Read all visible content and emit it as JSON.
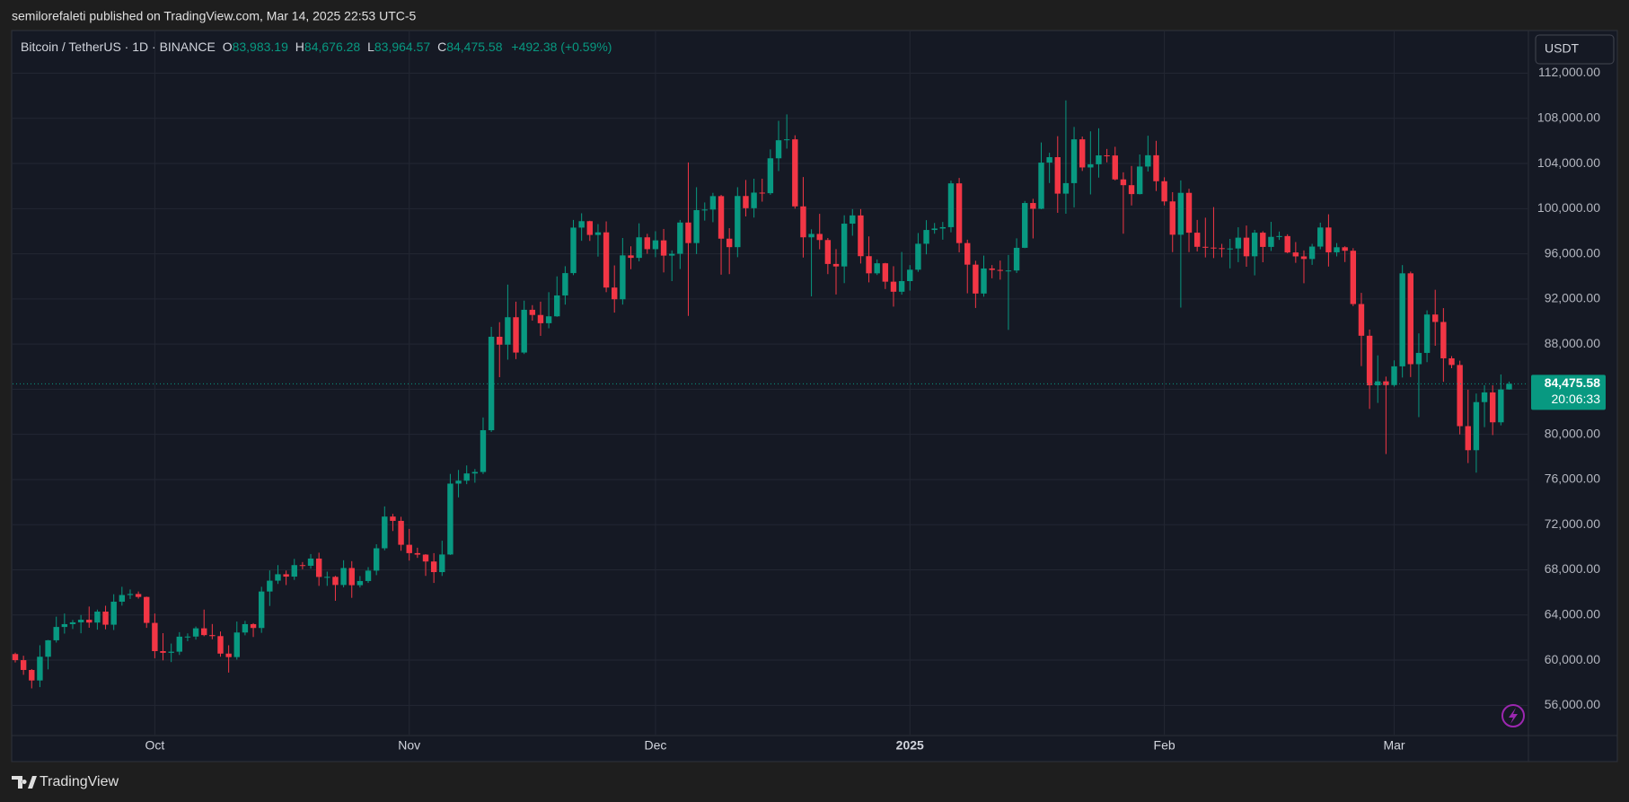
{
  "header": {
    "published": "semilorefaleti published on TradingView.com, Mar 14, 2025 22:53 UTC-5"
  },
  "footer": {
    "brand": "TradingView"
  },
  "chart_data": {
    "type": "candlestick",
    "title": "Bitcoin / TetherUS · 1D · BINANCE",
    "legend_keys": [
      "O",
      "H",
      "L",
      "C"
    ],
    "last_labels": {
      "open": "83,983.19",
      "high": "84,676.28",
      "low": "83,964.57",
      "close": "84,475.58",
      "change": "+492.38 (+0.59%)",
      "countdown": "20:06:33"
    },
    "currency": "USDT",
    "up_color": "#089981",
    "down_color": "#f23645",
    "grid": true,
    "ylim": [
      53400,
      115700
    ],
    "yticks": [
      {
        "value": 56000,
        "label": "56,000.00"
      },
      {
        "value": 60000,
        "label": "60,000.00"
      },
      {
        "value": 64000,
        "label": "64,000.00"
      },
      {
        "value": 68000,
        "label": "68,000.00"
      },
      {
        "value": 72000,
        "label": "72,000.00"
      },
      {
        "value": 76000,
        "label": "76,000.00"
      },
      {
        "value": 80000,
        "label": "80,000.00"
      },
      {
        "value": 84000,
        "label": "84,000.00"
      },
      {
        "value": 88000,
        "label": "88,000.00"
      },
      {
        "value": 92000,
        "label": "92,000.00"
      },
      {
        "value": 96000,
        "label": "96,000.00"
      },
      {
        "value": 100000,
        "label": "100,000.00"
      },
      {
        "value": 104000,
        "label": "104,000.00"
      },
      {
        "value": 108000,
        "label": "108,000.00"
      },
      {
        "value": 112000,
        "label": "112,000.00"
      }
    ],
    "categories": [
      null,
      null,
      null,
      null,
      null,
      null,
      null,
      null,
      null,
      null,
      null,
      null,
      null,
      null,
      null,
      null,
      null,
      "Oct",
      null,
      null,
      null,
      null,
      null,
      null,
      null,
      null,
      null,
      null,
      null,
      null,
      null,
      null,
      null,
      null,
      null,
      null,
      null,
      null,
      null,
      null,
      null,
      null,
      null,
      null,
      null,
      null,
      null,
      null,
      "Nov",
      null,
      null,
      null,
      null,
      null,
      null,
      null,
      null,
      null,
      null,
      null,
      null,
      null,
      null,
      null,
      null,
      null,
      null,
      null,
      null,
      null,
      null,
      null,
      null,
      null,
      null,
      null,
      null,
      null,
      "Dec",
      null,
      null,
      null,
      null,
      null,
      null,
      null,
      null,
      null,
      null,
      null,
      null,
      null,
      null,
      null,
      null,
      null,
      null,
      null,
      null,
      null,
      null,
      null,
      null,
      null,
      null,
      null,
      null,
      null,
      null,
      "2025",
      null,
      null,
      null,
      null,
      null,
      null,
      null,
      null,
      null,
      null,
      null,
      null,
      null,
      null,
      null,
      null,
      null,
      null,
      null,
      null,
      null,
      null,
      null,
      null,
      null,
      null,
      null,
      null,
      null,
      null,
      "Feb",
      null,
      null,
      null,
      null,
      null,
      null,
      null,
      null,
      null,
      null,
      null,
      null,
      null,
      null,
      null,
      null,
      null,
      null,
      null,
      null,
      null,
      null,
      null,
      null,
      null,
      null,
      null,
      "Mar",
      null,
      null,
      null,
      null,
      null,
      null,
      null,
      null,
      null,
      null,
      null,
      null,
      null,
      null
    ],
    "open": [
      60540,
      60000,
      59130,
      58200,
      60300,
      61760,
      62940,
      63190,
      63350,
      63580,
      63330,
      64300,
      63140,
      65180,
      65770,
      65860,
      65600,
      63300,
      60800,
      60650,
      60750,
      62080,
      62090,
      62820,
      62220,
      62130,
      60580,
      60270,
      62450,
      63190,
      62850,
      66080,
      67040,
      67610,
      67400,
      68420,
      68360,
      69000,
      67370,
      67380,
      66660,
      68160,
      66640,
      67010,
      67930,
      69910,
      72720,
      72340,
      70220,
      69480,
      69350,
      68740,
      67800,
      69360,
      75640,
      75900,
      76540,
      76670,
      80370,
      88650,
      87950,
      90380,
      87250,
      91040,
      90580,
      89850,
      90460,
      92310,
      94290,
      98320,
      98890,
      97670,
      97900,
      93010,
      91970,
      95860,
      95640,
      97460,
      96410,
      97190,
      95840,
      96000,
      98770,
      96950,
      99870,
      99920,
      101110,
      97340,
      96590,
      101120,
      100040,
      101420,
      101370,
      104460,
      106060,
      106140,
      100200,
      97460,
      97760,
      97220,
      95100,
      94880,
      98670,
      99400,
      95790,
      94270,
      95160,
      93530,
      92640,
      93580,
      94590,
      96890,
      98110,
      98240,
      98360,
      102240,
      96950,
      95040,
      92480,
      94700,
      94570,
      94510,
      94520,
      96530,
      100500,
      99990,
      104080,
      104560,
      101330,
      102260,
      106140,
      103650,
      103930,
      104720,
      104710,
      102590,
      102080,
      101290,
      103730,
      104730,
      102430,
      100640,
      97690,
      101400,
      97870,
      96620,
      96550,
      96500,
      96450,
      96470,
      97430,
      95780,
      97870,
      96610,
      97500,
      97570,
      96120,
      95770,
      95540,
      96640,
      98330,
      96130,
      96580,
      96270,
      91550,
      88740,
      84350,
      84700,
      84370,
      86030,
      94270,
      86220,
      87220,
      90620,
      89960,
      86740,
      86150,
      80730,
      78600,
      82860,
      83720,
      81070,
      83983.19
    ],
    "high": [
      60660,
      60390,
      59210,
      61320,
      61790,
      63850,
      64130,
      63560,
      64000,
      64750,
      64480,
      64820,
      65840,
      66500,
      66260,
      66080,
      65630,
      64130,
      62390,
      61470,
      62480,
      62370,
      62980,
      64480,
      63200,
      62540,
      61320,
      63420,
      63480,
      63280,
      66500,
      67950,
      68420,
      67940,
      68970,
      68690,
      69400,
      69520,
      67840,
      67470,
      68850,
      68770,
      67450,
      68240,
      70270,
      73620,
      72960,
      72700,
      71630,
      69960,
      69390,
      69480,
      70580,
      76500,
      76850,
      77250,
      76930,
      81500,
      89530,
      89940,
      93270,
      91760,
      91850,
      91450,
      91760,
      92600,
      94000,
      94900,
      99000,
      99590,
      98930,
      98630,
      98870,
      94970,
      97400,
      96660,
      98700,
      97770,
      98000,
      98200,
      96300,
      99000,
      104090,
      101900,
      100550,
      101400,
      101220,
      98270,
      101900,
      102540,
      102650,
      102650,
      105250,
      107780,
      108350,
      106500,
      102800,
      98170,
      99540,
      97400,
      96420,
      99410,
      99960,
      99960,
      97540,
      95500,
      95200,
      94900,
      96160,
      95000,
      97840,
      98980,
      98730,
      98820,
      102480,
      102720,
      97250,
      95380,
      95840,
      95000,
      95400,
      95900,
      97370,
      100680,
      100870,
      105860,
      104950,
      106420,
      109590,
      107240,
      106390,
      106850,
      107120,
      105290,
      105480,
      103220,
      103780,
      104800,
      106460,
      106010,
      102780,
      101460,
      102500,
      101760,
      99000,
      99200,
      100140,
      96880,
      97320,
      98350,
      98500,
      98120,
      98000,
      98830,
      97970,
      97730,
      97040,
      96300,
      96880,
      98760,
      99500,
      96950,
      96670,
      96500,
      92540,
      89290,
      87000,
      85120,
      86560,
      95000,
      94420,
      88950,
      90990,
      92810,
      91190,
      86940,
      86530,
      83960,
      83620,
      84360,
      84350,
      85310,
      84676.28
    ],
    "low": [
      59800,
      58700,
      57500,
      57610,
      59180,
      61560,
      62350,
      62760,
      62380,
      62870,
      62700,
      62730,
      62670,
      64830,
      65420,
      65450,
      62860,
      60170,
      59980,
      59830,
      60460,
      61680,
      61820,
      62120,
      61850,
      60300,
      58900,
      60050,
      62200,
      62050,
      62420,
      64800,
      66750,
      66650,
      67110,
      68050,
      68100,
      66580,
      66580,
      65260,
      66450,
      65520,
      66440,
      66840,
      67530,
      69730,
      71440,
      69690,
      68820,
      69060,
      67460,
      66840,
      67460,
      69320,
      74420,
      75590,
      75720,
      76490,
      80220,
      85070,
      86620,
      86670,
      87120,
      90080,
      88730,
      89400,
      90420,
      91500,
      94110,
      97150,
      97140,
      95750,
      92600,
      90790,
      91500,
      94630,
      95330,
      96000,
      95700,
      94350,
      93580,
      94650,
      90500,
      95980,
      98940,
      98800,
      94150,
      94200,
      95700,
      99310,
      99210,
      100620,
      101230,
      103330,
      105320,
      100000,
      95670,
      92230,
      96400,
      94200,
      92400,
      93400,
      97600,
      95140,
      93470,
      94120,
      92880,
      91320,
      92380,
      92740,
      94400,
      95950,
      97780,
      97250,
      97900,
      96130,
      92500,
      91200,
      92200,
      93830,
      93710,
      89260,
      94300,
      96500,
      97360,
      99950,
      102270,
      99630,
      99550,
      100110,
      103340,
      101260,
      102750,
      104100,
      102500,
      97780,
      100280,
      101260,
      103290,
      101560,
      100280,
      96150,
      91230,
      96150,
      96210,
      95680,
      95620,
      95690,
      94710,
      95260,
      94850,
      94090,
      95250,
      96250,
      97230,
      96050,
      95200,
      93390,
      95020,
      96400,
      94870,
      95770,
      95270,
      91370,
      86050,
      82260,
      82790,
      78260,
      84230,
      85040,
      85080,
      81530,
      86400,
      87850,
      84660,
      85860,
      80000,
      77460,
      76610,
      80640,
      79940,
      80800,
      83964.57
    ],
    "close": [
      60000,
      59130,
      58200,
      60300,
      61760,
      62940,
      63190,
      63350,
      63580,
      63330,
      64300,
      63140,
      65180,
      65770,
      65860,
      65600,
      63300,
      60800,
      60650,
      60750,
      62080,
      62090,
      62820,
      62220,
      62130,
      60580,
      60270,
      62450,
      63190,
      62850,
      66080,
      67040,
      67610,
      67400,
      68420,
      68360,
      69000,
      67370,
      67380,
      66660,
      68160,
      66640,
      67010,
      67930,
      69910,
      72720,
      72340,
      70220,
      69480,
      69350,
      68740,
      67800,
      69360,
      75640,
      75900,
      76540,
      76670,
      80370,
      88650,
      87950,
      90380,
      87250,
      91040,
      90580,
      89850,
      90460,
      92310,
      94290,
      98320,
      98890,
      97670,
      97900,
      93010,
      91970,
      95860,
      95640,
      97460,
      96410,
      97190,
      95840,
      96000,
      98770,
      96950,
      99870,
      99920,
      101110,
      97340,
      96590,
      101120,
      100040,
      101420,
      101370,
      104460,
      106060,
      106140,
      100200,
      97460,
      97760,
      97220,
      95100,
      94880,
      98670,
      99400,
      95790,
      94270,
      95160,
      93530,
      92640,
      93580,
      94590,
      96890,
      98110,
      98240,
      98360,
      102240,
      96950,
      95040,
      92480,
      94700,
      94570,
      94510,
      94520,
      96530,
      100500,
      99990,
      104080,
      104560,
      101330,
      102260,
      106140,
      103650,
      103930,
      104720,
      104710,
      102590,
      102080,
      101290,
      103730,
      104730,
      102430,
      100640,
      97690,
      101400,
      97870,
      96620,
      96550,
      96500,
      96450,
      96470,
      97430,
      95780,
      97870,
      96610,
      97500,
      97570,
      96120,
      95770,
      95540,
      96640,
      98330,
      96130,
      96580,
      96270,
      91550,
      88740,
      84350,
      84700,
      84370,
      86030,
      94270,
      86220,
      87220,
      90620,
      89960,
      86740,
      86150,
      80730,
      78600,
      82860,
      83720,
      81070,
      83980,
      84475.58
    ]
  }
}
